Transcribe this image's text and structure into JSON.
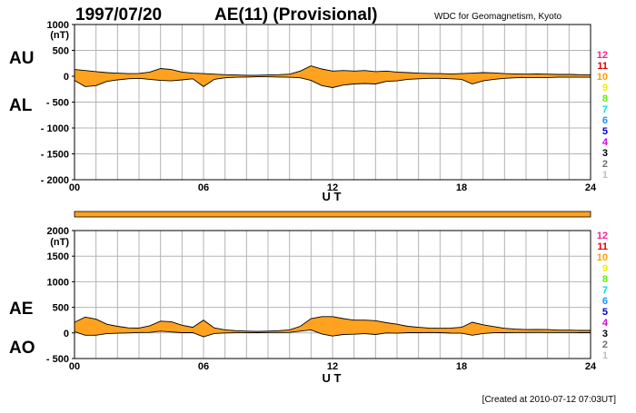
{
  "header": {
    "date": "1997/07/20",
    "title": "AE(11) (Provisional)",
    "source": "WDC for Geomagnetism, Kyoto"
  },
  "footer": {
    "created": "[Created at 2010-07-12 07:03UT]"
  },
  "colors": {
    "fill": "#ffa21f",
    "grid": "#b4b4b4",
    "trace": "#000000"
  },
  "station_legend": [
    {
      "label": "12",
      "color": "#ff1f8f"
    },
    {
      "label": "11",
      "color": "#e00000"
    },
    {
      "label": "10",
      "color": "#ff9f00"
    },
    {
      "label": "9",
      "color": "#f0f000"
    },
    {
      "label": "8",
      "color": "#60f000"
    },
    {
      "label": "7",
      "color": "#00e0e0"
    },
    {
      "label": "6",
      "color": "#2090ff"
    },
    {
      "label": "5",
      "color": "#0000d0"
    },
    {
      "label": "4",
      "color": "#e000e0"
    },
    {
      "label": "3",
      "color": "#000000"
    },
    {
      "label": "2",
      "color": "#707070"
    },
    {
      "label": "1",
      "color": "#c0c0c0"
    }
  ],
  "chart_data": [
    {
      "type": "area",
      "series_labels": [
        "AU",
        "AL"
      ],
      "unit_label": "(nT)",
      "xlabel": "U T",
      "xlim": [
        0,
        24
      ],
      "ylim": [
        -2000,
        1000
      ],
      "y_ticks": [
        1000,
        500,
        0,
        -500,
        -1000,
        -1500,
        -2000
      ],
      "y_tick_labels": [
        "1000",
        "500",
        "0",
        "- 500",
        "- 1000",
        "- 1500",
        "- 2000"
      ],
      "x_ticks": [
        0,
        6,
        12,
        18,
        24
      ],
      "x_tick_labels": [
        "00",
        "06",
        "12",
        "18",
        "24"
      ],
      "grid": true,
      "x": [
        0,
        0.5,
        1,
        1.5,
        2,
        2.5,
        3,
        3.5,
        4,
        4.5,
        5,
        5.5,
        6,
        6.5,
        7,
        7.5,
        8,
        8.5,
        9,
        9.5,
        10,
        10.5,
        11,
        11.5,
        12,
        12.5,
        13,
        13.5,
        14,
        14.5,
        15,
        15.5,
        16,
        16.5,
        17,
        17.5,
        18,
        18.5,
        19,
        19.5,
        20,
        20.5,
        21,
        21.5,
        22,
        22.5,
        23,
        23.5,
        24
      ],
      "series": [
        {
          "name": "AU",
          "values": [
            130,
            110,
            90,
            70,
            60,
            50,
            55,
            80,
            150,
            130,
            80,
            60,
            50,
            40,
            30,
            25,
            20,
            20,
            25,
            30,
            40,
            100,
            200,
            140,
            100,
            110,
            100,
            110,
            90,
            100,
            80,
            70,
            60,
            55,
            50,
            45,
            50,
            60,
            70,
            65,
            50,
            45,
            40,
            45,
            40,
            35,
            35,
            30,
            30
          ]
        },
        {
          "name": "AL",
          "values": [
            -80,
            -200,
            -180,
            -100,
            -70,
            -50,
            -40,
            -60,
            -80,
            -90,
            -70,
            -50,
            -200,
            -60,
            -30,
            -20,
            -15,
            -10,
            -10,
            -15,
            -20,
            -30,
            -80,
            -180,
            -220,
            -170,
            -150,
            -140,
            -150,
            -100,
            -90,
            -60,
            -50,
            -40,
            -40,
            -50,
            -60,
            -150,
            -90,
            -60,
            -40,
            -30,
            -25,
            -25,
            -25,
            -20,
            -20,
            -20,
            -20
          ]
        }
      ]
    },
    {
      "type": "line",
      "xlim": [
        0,
        24
      ],
      "ylim": [
        0,
        1
      ],
      "grid": false,
      "series": []
    },
    {
      "type": "area",
      "series_labels": [
        "AE",
        "AO"
      ],
      "unit_label": "(nT)",
      "xlabel": "U T",
      "xlim": [
        0,
        24
      ],
      "ylim": [
        -500,
        2000
      ],
      "y_ticks": [
        2000,
        1500,
        1000,
        500,
        0,
        -500
      ],
      "y_tick_labels": [
        "2000",
        "1500",
        "1000",
        "500",
        "0",
        "- 500"
      ],
      "x_ticks": [
        0,
        6,
        12,
        18,
        24
      ],
      "x_tick_labels": [
        "00",
        "06",
        "12",
        "18",
        "24"
      ],
      "grid": true,
      "x": [
        0,
        0.5,
        1,
        1.5,
        2,
        2.5,
        3,
        3.5,
        4,
        4.5,
        5,
        5.5,
        6,
        6.5,
        7,
        7.5,
        8,
        8.5,
        9,
        9.5,
        10,
        10.5,
        11,
        11.5,
        12,
        12.5,
        13,
        13.5,
        14,
        14.5,
        15,
        15.5,
        16,
        16.5,
        17,
        17.5,
        18,
        18.5,
        19,
        19.5,
        20,
        20.5,
        21,
        21.5,
        22,
        22.5,
        23,
        23.5,
        24
      ],
      "series": [
        {
          "name": "AE",
          "values": [
            210,
            310,
            270,
            170,
            130,
            100,
            95,
            140,
            230,
            220,
            150,
            110,
            250,
            100,
            60,
            45,
            35,
            30,
            35,
            45,
            60,
            130,
            280,
            320,
            320,
            280,
            250,
            250,
            240,
            200,
            170,
            130,
            110,
            95,
            90,
            95,
            110,
            210,
            160,
            125,
            90,
            75,
            65,
            70,
            65,
            55,
            55,
            50,
            50
          ]
        },
        {
          "name": "AO",
          "values": [
            25,
            -45,
            -45,
            -15,
            -5,
            0,
            8,
            10,
            35,
            20,
            5,
            5,
            -75,
            -10,
            0,
            3,
            3,
            5,
            8,
            8,
            10,
            35,
            60,
            -20,
            -60,
            -30,
            -25,
            -15,
            -30,
            0,
            -5,
            5,
            5,
            8,
            5,
            -3,
            -5,
            -45,
            -10,
            3,
            5,
            8,
            8,
            10,
            8,
            8,
            8,
            5,
            5
          ]
        }
      ]
    }
  ],
  "left_labels": {
    "top_upper": "AU",
    "top_lower": "AL",
    "bottom_upper": "AE",
    "bottom_lower": "AO"
  }
}
